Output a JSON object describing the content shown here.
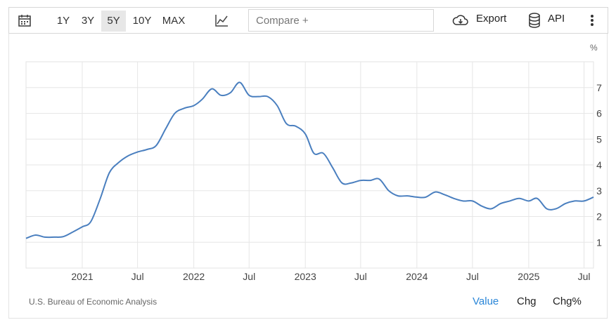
{
  "toolbar": {
    "ranges": [
      "1Y",
      "3Y",
      "5Y",
      "10Y",
      "MAX"
    ],
    "active_range": "5Y",
    "compare_placeholder": "Compare +",
    "export_label": "Export",
    "api_label": "API"
  },
  "unit_label": "%",
  "source": "U.S. Bureau of Economic Analysis",
  "tabs": [
    "Value",
    "Chg",
    "Chg%"
  ],
  "active_tab": "Value",
  "colors": {
    "line": "#4a7fbf",
    "grid": "#e6e6e6",
    "active_tab": "#2a86d8"
  },
  "chart_data": {
    "type": "line",
    "y_ticks": [
      1,
      2,
      3,
      4,
      5,
      6,
      7
    ],
    "ylim": [
      0,
      8
    ],
    "xlim": [
      "2020-07-31",
      "2025-08-31"
    ],
    "x_ticks": [
      {
        "label": "2021",
        "date": "2021-01-31"
      },
      {
        "label": "Jul",
        "date": "2021-07-31"
      },
      {
        "label": "2022",
        "date": "2022-01-31"
      },
      {
        "label": "Jul",
        "date": "2022-07-31"
      },
      {
        "label": "2023",
        "date": "2023-01-31"
      },
      {
        "label": "Jul",
        "date": "2023-07-31"
      },
      {
        "label": "2024",
        "date": "2024-01-31"
      },
      {
        "label": "Jul",
        "date": "2024-07-31"
      },
      {
        "label": "2025",
        "date": "2025-01-31"
      },
      {
        "label": "Jul",
        "date": "2025-07-31"
      }
    ],
    "grid": true,
    "series": [
      {
        "x": [
          "2020-07-31",
          "2020-08-31",
          "2020-09-30",
          "2020-10-31",
          "2020-11-30",
          "2020-12-31",
          "2021-01-31",
          "2021-02-28",
          "2021-03-31",
          "2021-04-30",
          "2021-05-31",
          "2021-06-30",
          "2021-07-31",
          "2021-08-31",
          "2021-09-30",
          "2021-10-31",
          "2021-11-30",
          "2021-12-31",
          "2022-01-31",
          "2022-02-28",
          "2022-03-31",
          "2022-04-30",
          "2022-05-31",
          "2022-06-30",
          "2022-07-31",
          "2022-08-31",
          "2022-09-30",
          "2022-10-31",
          "2022-11-30",
          "2022-12-31",
          "2023-01-31",
          "2023-02-28",
          "2023-03-31",
          "2023-04-30",
          "2023-05-31",
          "2023-06-30",
          "2023-07-31",
          "2023-08-31",
          "2023-09-30",
          "2023-10-31",
          "2023-11-30",
          "2023-12-31",
          "2024-01-31",
          "2024-02-29",
          "2024-03-31",
          "2024-04-30",
          "2024-05-31",
          "2024-06-30",
          "2024-07-31",
          "2024-08-31",
          "2024-09-30",
          "2024-10-31",
          "2024-11-30",
          "2024-12-31",
          "2025-01-31",
          "2025-02-28",
          "2025-03-31",
          "2025-04-30",
          "2025-05-31",
          "2025-06-30",
          "2025-07-31",
          "2025-08-31"
        ],
        "values": [
          1.15,
          1.28,
          1.2,
          1.2,
          1.22,
          1.4,
          1.6,
          1.8,
          2.7,
          3.7,
          4.1,
          4.35,
          4.5,
          4.6,
          4.75,
          5.4,
          6.0,
          6.2,
          6.3,
          6.55,
          6.95,
          6.7,
          6.8,
          7.2,
          6.7,
          6.65,
          6.65,
          6.3,
          5.6,
          5.5,
          5.2,
          4.45,
          4.45,
          3.9,
          3.3,
          3.3,
          3.4,
          3.4,
          3.45,
          3.0,
          2.8,
          2.8,
          2.75,
          2.75,
          2.95,
          2.85,
          2.7,
          2.6,
          2.6,
          2.4,
          2.3,
          2.5,
          2.6,
          2.7,
          2.6,
          2.7,
          2.3,
          2.3,
          2.5,
          2.6,
          2.6,
          2.75
        ]
      }
    ]
  }
}
